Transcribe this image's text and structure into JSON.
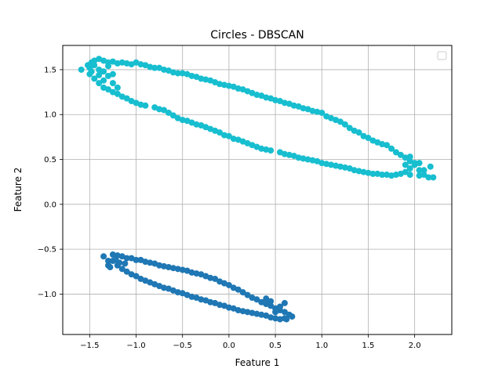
{
  "chart_data": {
    "type": "scatter",
    "title": "Circles - DBSCAN",
    "xlabel": "Feature 1",
    "ylabel": "Feature 2",
    "xlim": [
      -1.79,
      2.4
    ],
    "ylim": [
      -1.45,
      1.77
    ],
    "xticks": [
      -1.5,
      -1.0,
      -0.5,
      0.0,
      0.5,
      1.0,
      1.5,
      2.0
    ],
    "xtick_labels": [
      "−1.5",
      "−1.0",
      "−0.5",
      "0.0",
      "0.5",
      "1.0",
      "1.5",
      "2.0"
    ],
    "yticks": [
      -1.0,
      -0.5,
      0.0,
      0.5,
      1.0,
      1.5
    ],
    "ytick_labels": [
      "−1.0",
      "−0.5",
      "0.0",
      "0.5",
      "1.0",
      "1.5"
    ],
    "grid": true,
    "legend": {
      "location": "top-right",
      "entries": []
    },
    "colors": {
      "cluster_0": "#1f77b4",
      "cluster_1": "#17becf",
      "grid": "#b0b0b0"
    },
    "series": [
      {
        "color": "#17becf",
        "points": [
          [
            -1.59,
            1.5
          ],
          [
            -1.52,
            1.55
          ],
          [
            -1.48,
            1.58
          ],
          [
            -1.45,
            1.6
          ],
          [
            -1.4,
            1.62
          ],
          [
            -1.35,
            1.6
          ],
          [
            -1.3,
            1.58
          ],
          [
            -1.25,
            1.59
          ],
          [
            -1.2,
            1.57
          ],
          [
            -1.15,
            1.58
          ],
          [
            -1.1,
            1.57
          ],
          [
            -1.05,
            1.56
          ],
          [
            -1.0,
            1.58
          ],
          [
            -0.95,
            1.56
          ],
          [
            -0.9,
            1.55
          ],
          [
            -0.85,
            1.53
          ],
          [
            -0.8,
            1.52
          ],
          [
            -0.75,
            1.52
          ],
          [
            -0.7,
            1.5
          ],
          [
            -0.65,
            1.49
          ],
          [
            -0.6,
            1.47
          ],
          [
            -0.55,
            1.46
          ],
          [
            -0.5,
            1.46
          ],
          [
            -0.45,
            1.45
          ],
          [
            -0.4,
            1.43
          ],
          [
            -0.35,
            1.42
          ],
          [
            -0.3,
            1.4
          ],
          [
            -0.25,
            1.39
          ],
          [
            -0.2,
            1.38
          ],
          [
            -0.15,
            1.36
          ],
          [
            -0.1,
            1.34
          ],
          [
            -0.05,
            1.33
          ],
          [
            0.0,
            1.32
          ],
          [
            0.05,
            1.31
          ],
          [
            0.1,
            1.29
          ],
          [
            0.15,
            1.28
          ],
          [
            0.2,
            1.26
          ],
          [
            0.25,
            1.24
          ],
          [
            0.3,
            1.22
          ],
          [
            0.35,
            1.21
          ],
          [
            0.4,
            1.19
          ],
          [
            0.45,
            1.18
          ],
          [
            0.5,
            1.16
          ],
          [
            0.55,
            1.15
          ],
          [
            0.6,
            1.13
          ],
          [
            0.65,
            1.12
          ],
          [
            0.7,
            1.1
          ],
          [
            0.75,
            1.09
          ],
          [
            0.8,
            1.07
          ],
          [
            0.85,
            1.06
          ],
          [
            0.9,
            1.04
          ],
          [
            0.95,
            1.03
          ],
          [
            1.0,
            1.02
          ],
          [
            1.05,
            0.98
          ],
          [
            1.1,
            0.96
          ],
          [
            1.15,
            0.94
          ],
          [
            1.2,
            0.92
          ],
          [
            1.25,
            0.89
          ],
          [
            1.3,
            0.85
          ],
          [
            1.35,
            0.82
          ],
          [
            1.4,
            0.8
          ],
          [
            1.45,
            0.76
          ],
          [
            1.5,
            0.74
          ],
          [
            1.55,
            0.71
          ],
          [
            1.6,
            0.69
          ],
          [
            1.65,
            0.67
          ],
          [
            1.7,
            0.66
          ],
          [
            1.75,
            0.62
          ],
          [
            1.8,
            0.58
          ],
          [
            1.85,
            0.55
          ],
          [
            1.9,
            0.52
          ],
          [
            1.95,
            0.48
          ],
          [
            2.0,
            0.44
          ],
          [
            2.05,
            0.38
          ],
          [
            2.1,
            0.33
          ],
          [
            2.15,
            0.3
          ],
          [
            2.2,
            0.3
          ],
          [
            2.17,
            0.42
          ],
          [
            -1.5,
            1.45
          ],
          [
            -1.45,
            1.4
          ],
          [
            -1.4,
            1.35
          ],
          [
            -1.35,
            1.3
          ],
          [
            -1.3,
            1.28
          ],
          [
            -1.25,
            1.25
          ],
          [
            -1.2,
            1.23
          ],
          [
            -1.15,
            1.2
          ],
          [
            -1.1,
            1.18
          ],
          [
            -1.05,
            1.15
          ],
          [
            -1.0,
            1.13
          ],
          [
            -0.95,
            1.11
          ],
          [
            -0.9,
            1.1
          ],
          [
            -0.8,
            1.08
          ],
          [
            -0.75,
            1.06
          ],
          [
            -0.7,
            1.05
          ],
          [
            -0.65,
            1.02
          ],
          [
            -0.6,
            0.99
          ],
          [
            -0.55,
            0.96
          ],
          [
            -0.5,
            0.94
          ],
          [
            -0.45,
            0.93
          ],
          [
            -0.4,
            0.91
          ],
          [
            -0.35,
            0.89
          ],
          [
            -0.3,
            0.88
          ],
          [
            -0.25,
            0.86
          ],
          [
            -0.2,
            0.84
          ],
          [
            -0.15,
            0.82
          ],
          [
            -0.1,
            0.8
          ],
          [
            -0.05,
            0.77
          ],
          [
            0.0,
            0.76
          ],
          [
            0.05,
            0.73
          ],
          [
            0.1,
            0.72
          ],
          [
            0.15,
            0.7
          ],
          [
            0.2,
            0.68
          ],
          [
            0.25,
            0.66
          ],
          [
            0.3,
            0.64
          ],
          [
            0.35,
            0.62
          ],
          [
            0.4,
            0.61
          ],
          [
            0.45,
            0.6
          ],
          [
            0.55,
            0.58
          ],
          [
            0.6,
            0.56
          ],
          [
            0.65,
            0.55
          ],
          [
            0.7,
            0.54
          ],
          [
            0.75,
            0.52
          ],
          [
            0.8,
            0.51
          ],
          [
            0.85,
            0.5
          ],
          [
            0.9,
            0.49
          ],
          [
            0.95,
            0.48
          ],
          [
            1.0,
            0.46
          ],
          [
            1.05,
            0.45
          ],
          [
            1.1,
            0.44
          ],
          [
            1.15,
            0.43
          ],
          [
            1.2,
            0.42
          ],
          [
            1.25,
            0.41
          ],
          [
            1.3,
            0.4
          ],
          [
            1.35,
            0.38
          ],
          [
            1.4,
            0.37
          ],
          [
            1.45,
            0.36
          ],
          [
            1.5,
            0.35
          ],
          [
            1.55,
            0.34
          ],
          [
            1.6,
            0.34
          ],
          [
            1.65,
            0.33
          ],
          [
            1.7,
            0.33
          ],
          [
            1.75,
            0.32
          ],
          [
            1.8,
            0.33
          ],
          [
            1.85,
            0.34
          ],
          [
            1.9,
            0.36
          ],
          [
            1.95,
            0.4
          ],
          [
            2.0,
            0.46
          ],
          [
            -1.5,
            1.52
          ],
          [
            -1.45,
            1.55
          ],
          [
            -1.4,
            1.5
          ],
          [
            -1.35,
            1.48
          ],
          [
            -1.3,
            1.43
          ],
          [
            -1.3,
            1.54
          ],
          [
            -1.25,
            1.45
          ],
          [
            -1.25,
            1.35
          ],
          [
            -1.2,
            1.3
          ],
          [
            -1.4,
            1.44
          ],
          [
            -1.35,
            1.38
          ],
          [
            -1.48,
            1.48
          ],
          [
            1.95,
            0.33
          ],
          [
            2.05,
            0.32
          ],
          [
            1.9,
            0.44
          ],
          [
            2.1,
            0.38
          ],
          [
            2.05,
            0.46
          ],
          [
            1.95,
            0.53
          ]
        ]
      },
      {
        "color": "#1f77b4",
        "points": [
          [
            -1.35,
            -0.58
          ],
          [
            -1.3,
            -0.63
          ],
          [
            -1.28,
            -0.7
          ],
          [
            -1.25,
            -0.56
          ],
          [
            -1.2,
            -0.57
          ],
          [
            -1.15,
            -0.58
          ],
          [
            -1.1,
            -0.6
          ],
          [
            -1.05,
            -0.6
          ],
          [
            -1.0,
            -0.62
          ],
          [
            -0.95,
            -0.62
          ],
          [
            -0.9,
            -0.64
          ],
          [
            -0.85,
            -0.65
          ],
          [
            -0.8,
            -0.66
          ],
          [
            -0.75,
            -0.68
          ],
          [
            -0.7,
            -0.69
          ],
          [
            -0.65,
            -0.7
          ],
          [
            -0.6,
            -0.71
          ],
          [
            -0.55,
            -0.72
          ],
          [
            -0.5,
            -0.73
          ],
          [
            -0.45,
            -0.74
          ],
          [
            -0.4,
            -0.76
          ],
          [
            -0.35,
            -0.77
          ],
          [
            -0.3,
            -0.78
          ],
          [
            -0.25,
            -0.8
          ],
          [
            -0.2,
            -0.82
          ],
          [
            -0.15,
            -0.83
          ],
          [
            -0.1,
            -0.86
          ],
          [
            -0.05,
            -0.88
          ],
          [
            0.0,
            -0.9
          ],
          [
            0.05,
            -0.93
          ],
          [
            0.1,
            -0.95
          ],
          [
            0.15,
            -0.98
          ],
          [
            0.2,
            -1.01
          ],
          [
            0.25,
            -1.04
          ],
          [
            0.3,
            -1.06
          ],
          [
            0.35,
            -1.09
          ],
          [
            0.4,
            -1.11
          ],
          [
            0.45,
            -1.13
          ],
          [
            0.5,
            -1.16
          ],
          [
            0.55,
            -1.18
          ],
          [
            0.6,
            -1.2
          ],
          [
            0.65,
            -1.23
          ],
          [
            0.68,
            -1.25
          ],
          [
            0.62,
            -1.28
          ],
          [
            -1.25,
            -0.63
          ],
          [
            -1.2,
            -0.68
          ],
          [
            -1.15,
            -0.72
          ],
          [
            -1.1,
            -0.75
          ],
          [
            -1.05,
            -0.78
          ],
          [
            -1.0,
            -0.8
          ],
          [
            -0.95,
            -0.83
          ],
          [
            -0.9,
            -0.85
          ],
          [
            -0.85,
            -0.87
          ],
          [
            -0.8,
            -0.89
          ],
          [
            -0.75,
            -0.91
          ],
          [
            -0.7,
            -0.93
          ],
          [
            -0.65,
            -0.94
          ],
          [
            -0.6,
            -0.96
          ],
          [
            -0.55,
            -0.98
          ],
          [
            -0.5,
            -0.99
          ],
          [
            -0.45,
            -1.01
          ],
          [
            -0.4,
            -1.03
          ],
          [
            -0.35,
            -1.04
          ],
          [
            -0.3,
            -1.06
          ],
          [
            -0.25,
            -1.07
          ],
          [
            -0.2,
            -1.09
          ],
          [
            -0.15,
            -1.1
          ],
          [
            -0.1,
            -1.12
          ],
          [
            -0.05,
            -1.13
          ],
          [
            0.0,
            -1.15
          ],
          [
            0.05,
            -1.16
          ],
          [
            0.1,
            -1.18
          ],
          [
            0.15,
            -1.19
          ],
          [
            0.2,
            -1.2
          ],
          [
            0.25,
            -1.21
          ],
          [
            0.3,
            -1.22
          ],
          [
            0.35,
            -1.23
          ],
          [
            0.4,
            -1.24
          ],
          [
            0.45,
            -1.26
          ],
          [
            0.5,
            -1.27
          ],
          [
            0.55,
            -1.28
          ],
          [
            0.6,
            -1.27
          ],
          [
            0.5,
            -1.2
          ],
          [
            0.55,
            -1.14
          ],
          [
            0.6,
            -1.1
          ],
          [
            0.45,
            -1.08
          ],
          [
            0.4,
            -1.05
          ],
          [
            -1.3,
            -0.68
          ],
          [
            -1.22,
            -0.62
          ],
          [
            -1.18,
            -0.65
          ],
          [
            -1.12,
            -0.66
          ]
        ]
      }
    ]
  }
}
